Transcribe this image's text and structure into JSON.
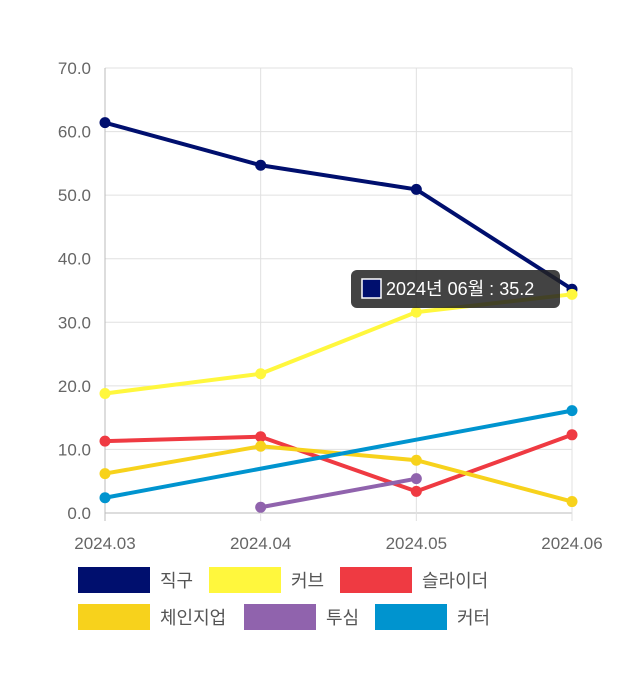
{
  "chart_data": {
    "type": "line",
    "categories": [
      "2024.03",
      "2024.04",
      "2024.05",
      "2024.06"
    ],
    "ylim": [
      0,
      70
    ],
    "yticks": [
      "0.0",
      "10.0",
      "20.0",
      "30.0",
      "40.0",
      "50.0",
      "60.0",
      "70.0"
    ],
    "grid": true,
    "legend_position": "bottom",
    "series": [
      {
        "name": "직구",
        "color": "#000f6e",
        "values": [
          61.4,
          54.7,
          50.9,
          35.2
        ]
      },
      {
        "name": "커브",
        "color": "#fff73d",
        "values": [
          18.8,
          21.9,
          31.6,
          34.4
        ]
      },
      {
        "name": "슬라이더",
        "color": "#ef3a42",
        "values": [
          11.3,
          12.0,
          3.4,
          12.3
        ]
      },
      {
        "name": "체인지업",
        "color": "#f7d21c",
        "values": [
          6.2,
          10.5,
          8.3,
          1.8
        ]
      },
      {
        "name": "투심",
        "color": "#9063ad",
        "values": [
          null,
          0.9,
          5.4,
          null
        ]
      },
      {
        "name": "커터",
        "color": "#0094cf",
        "values": [
          2.4,
          null,
          null,
          16.1
        ]
      }
    ],
    "tooltip": {
      "label": "2024년 06월 : 35.2",
      "series_index": 0,
      "category_index": 3,
      "swatch_color": "#000f6e"
    }
  }
}
